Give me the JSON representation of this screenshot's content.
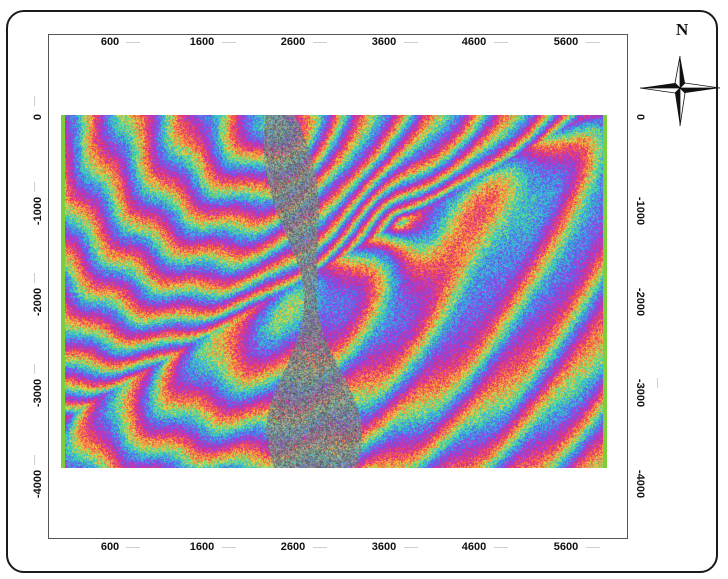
{
  "map": {
    "x_axis": {
      "tick_labels": [
        "600",
        "1600",
        "2600",
        "3600",
        "4600",
        "5600"
      ]
    },
    "y_axis": {
      "tick_labels": [
        "0",
        "-1000",
        "-2000",
        "-3000",
        "-4000"
      ]
    },
    "north_arrow": {
      "letter": "N",
      "icon": "north-arrow-compass-icon"
    },
    "raster": {
      "type": "interferogram-fringes",
      "palette": [
        "#e02a7a",
        "#ff6a3c",
        "#f5d53a",
        "#48e08a",
        "#2fb8e8",
        "#5a5af0",
        "#b43ad8"
      ],
      "coherence_loss_color": "#8a8f94",
      "edge_color": "#7ccf3a"
    }
  }
}
